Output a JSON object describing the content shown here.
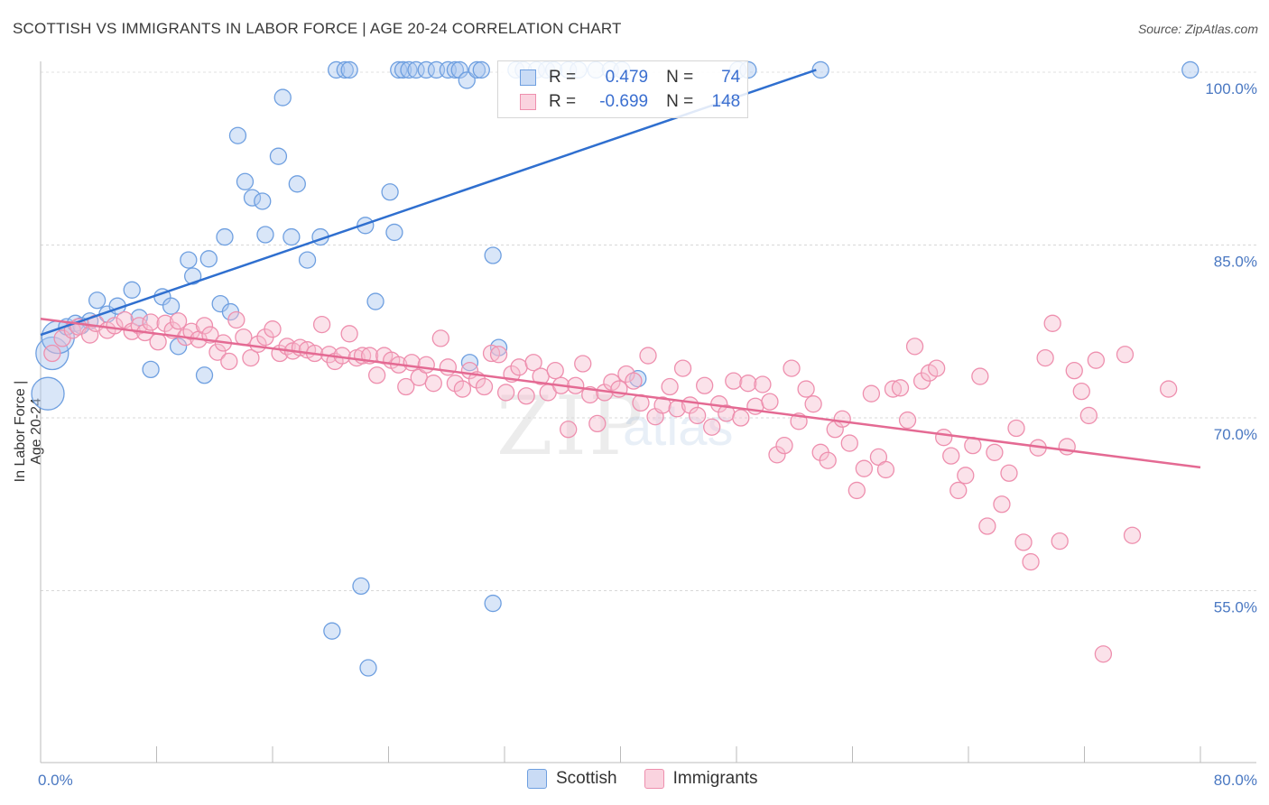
{
  "title": "SCOTTISH VS IMMIGRANTS IN LABOR FORCE | AGE 20-24 CORRELATION CHART",
  "source": "Source: ZipAtlas.com",
  "watermark": {
    "zip": "ZIP",
    "atlas": "atlas"
  },
  "legend": {
    "r_label": "R =",
    "n_label": "N =",
    "scottish": {
      "r": "0.479",
      "n": "74"
    },
    "immigrants": {
      "r": "-0.699",
      "n": "148"
    }
  },
  "bottom_legend": {
    "scottish": "Scottish",
    "immigrants": "Immigrants"
  },
  "colors": {
    "scottish_fill": "#aac7f0",
    "scottish_stroke": "#6e9fe0",
    "scottish_line": "#2f6fcf",
    "immigrants_fill": "#f6bfd0",
    "immigrants_stroke": "#ee8fae",
    "immigrants_line": "#e46a93",
    "tick_text": "#4a78c2"
  },
  "chart_data": {
    "type": "scatter",
    "title": "SCOTTISH VS IMMIGRANTS IN LABOR FORCE | AGE 20-24 CORRELATION CHART",
    "xlabel": "",
    "ylabel": "In Labor Force | Age 20-24",
    "xlim": [
      0,
      80
    ],
    "ylim": [
      38,
      102
    ],
    "x_tick_labels": [
      "0.0%",
      "80.0%"
    ],
    "y_ticks": [
      55,
      70,
      85,
      100
    ],
    "y_tick_labels": [
      "55.0%",
      "70.0%",
      "85.0%",
      "100.0%"
    ],
    "grid": true,
    "legend_position": "top-center",
    "series": [
      {
        "name": "Scottish",
        "r": 0.479,
        "n": 74,
        "trend": [
          [
            0,
            77.2
          ],
          [
            53.5,
            100.2
          ]
        ],
        "points": [
          [
            0.5,
            72.1,
            "lg"
          ],
          [
            0.8,
            75.6,
            "lg"
          ],
          [
            1.2,
            77.0,
            "lg"
          ],
          [
            1.8,
            77.9
          ],
          [
            2.4,
            78.2
          ],
          [
            2.8,
            78.0
          ],
          [
            3.4,
            78.4
          ],
          [
            3.9,
            80.2
          ],
          [
            4.6,
            79.0
          ],
          [
            5.3,
            79.7
          ],
          [
            6.3,
            81.1
          ],
          [
            6.8,
            78.7
          ],
          [
            7.6,
            74.2
          ],
          [
            8.4,
            80.5
          ],
          [
            9.0,
            79.7
          ],
          [
            9.5,
            76.2
          ],
          [
            10.2,
            83.7
          ],
          [
            10.5,
            82.3
          ],
          [
            11.3,
            73.7
          ],
          [
            11.6,
            83.8
          ],
          [
            12.4,
            79.9
          ],
          [
            12.7,
            85.7
          ],
          [
            13.1,
            79.2
          ],
          [
            13.6,
            94.5
          ],
          [
            14.1,
            90.5
          ],
          [
            14.6,
            89.1
          ],
          [
            15.3,
            88.8
          ],
          [
            15.5,
            85.9
          ],
          [
            16.4,
            92.7
          ],
          [
            16.7,
            97.8
          ],
          [
            17.3,
            85.7
          ],
          [
            17.7,
            90.3
          ],
          [
            18.4,
            83.7
          ],
          [
            19.3,
            85.7
          ],
          [
            20.1,
            51.5
          ],
          [
            20.4,
            100.2
          ],
          [
            21.0,
            100.2
          ],
          [
            21.3,
            100.2
          ],
          [
            22.1,
            55.4
          ],
          [
            22.4,
            86.7
          ],
          [
            22.6,
            48.3
          ],
          [
            23.1,
            80.1
          ],
          [
            24.1,
            89.6
          ],
          [
            24.4,
            86.1
          ],
          [
            24.7,
            100.2
          ],
          [
            25.0,
            100.2
          ],
          [
            25.4,
            100.2
          ],
          [
            25.9,
            100.2
          ],
          [
            26.6,
            100.2
          ],
          [
            27.3,
            100.2
          ],
          [
            28.1,
            100.2
          ],
          [
            28.6,
            100.2
          ],
          [
            28.9,
            100.2
          ],
          [
            29.4,
            99.3
          ],
          [
            29.6,
            74.8
          ],
          [
            30.1,
            100.2
          ],
          [
            30.4,
            100.2
          ],
          [
            31.2,
            53.9
          ],
          [
            31.2,
            84.1
          ],
          [
            31.6,
            76.1
          ],
          [
            32.8,
            100.2
          ],
          [
            33.3,
            100.2
          ],
          [
            34.2,
            100.2
          ],
          [
            34.9,
            100.2
          ],
          [
            35.4,
            100.2
          ],
          [
            36.4,
            100.2
          ],
          [
            37.1,
            100.2
          ],
          [
            38.3,
            100.2
          ],
          [
            39.3,
            100.2
          ],
          [
            40.1,
            100.2
          ],
          [
            41.2,
            73.4
          ],
          [
            48.1,
            100.2
          ],
          [
            48.8,
            100.2
          ],
          [
            53.8,
            100.2
          ],
          [
            79.3,
            100.2
          ]
        ]
      },
      {
        "name": "Immigrants",
        "r": -0.699,
        "n": 148,
        "trend": [
          [
            0,
            78.6
          ],
          [
            80,
            65.7
          ]
        ],
        "points": [
          [
            0.8,
            75.6
          ],
          [
            1.5,
            76.9
          ],
          [
            2.2,
            77.6
          ],
          [
            2.6,
            77.9
          ],
          [
            3.4,
            77.2
          ],
          [
            3.8,
            78.2
          ],
          [
            4.6,
            77.6
          ],
          [
            5.1,
            78.0
          ],
          [
            5.8,
            78.5
          ],
          [
            6.3,
            77.5
          ],
          [
            6.8,
            78.0
          ],
          [
            7.2,
            77.4
          ],
          [
            7.6,
            78.3
          ],
          [
            8.1,
            76.6
          ],
          [
            8.6,
            78.2
          ],
          [
            9.1,
            77.6
          ],
          [
            9.5,
            78.4
          ],
          [
            10.0,
            77.0
          ],
          [
            10.4,
            77.5
          ],
          [
            10.9,
            76.8
          ],
          [
            11.3,
            78.0
          ],
          [
            11.7,
            77.2
          ],
          [
            12.2,
            75.7
          ],
          [
            12.6,
            76.5
          ],
          [
            13.0,
            74.9
          ],
          [
            13.5,
            78.5
          ],
          [
            14.0,
            77.0
          ],
          [
            14.5,
            75.2
          ],
          [
            15.0,
            76.4
          ],
          [
            15.5,
            77.0
          ],
          [
            16.0,
            77.7
          ],
          [
            16.5,
            75.6
          ],
          [
            17.0,
            76.2
          ],
          [
            17.4,
            75.8
          ],
          [
            17.9,
            76.1
          ],
          [
            18.4,
            75.9
          ],
          [
            18.9,
            75.6
          ],
          [
            19.4,
            78.1
          ],
          [
            19.9,
            75.5
          ],
          [
            20.3,
            74.9
          ],
          [
            20.8,
            75.4
          ],
          [
            21.3,
            77.3
          ],
          [
            21.8,
            75.2
          ],
          [
            22.2,
            75.4
          ],
          [
            22.7,
            75.4
          ],
          [
            23.2,
            73.7
          ],
          [
            23.7,
            75.4
          ],
          [
            24.2,
            75.0
          ],
          [
            24.7,
            74.6
          ],
          [
            25.2,
            72.7
          ],
          [
            25.6,
            74.8
          ],
          [
            26.1,
            73.5
          ],
          [
            26.6,
            74.6
          ],
          [
            27.1,
            73.0
          ],
          [
            27.6,
            76.9
          ],
          [
            28.1,
            74.4
          ],
          [
            28.6,
            73.0
          ],
          [
            29.1,
            72.5
          ],
          [
            29.6,
            74.1
          ],
          [
            30.1,
            73.3
          ],
          [
            30.6,
            72.7
          ],
          [
            31.1,
            75.6
          ],
          [
            31.6,
            75.5
          ],
          [
            32.1,
            72.2
          ],
          [
            32.5,
            73.8
          ],
          [
            33.0,
            74.4
          ],
          [
            33.5,
            71.9
          ],
          [
            34.0,
            74.8
          ],
          [
            34.5,
            73.6
          ],
          [
            35.0,
            72.2
          ],
          [
            35.5,
            74.1
          ],
          [
            35.9,
            72.8
          ],
          [
            36.4,
            69.0
          ],
          [
            36.9,
            72.8
          ],
          [
            37.4,
            74.7
          ],
          [
            37.9,
            72.0
          ],
          [
            38.4,
            69.5
          ],
          [
            38.9,
            72.2
          ],
          [
            39.4,
            73.1
          ],
          [
            39.9,
            72.5
          ],
          [
            40.4,
            73.8
          ],
          [
            40.9,
            73.2
          ],
          [
            41.4,
            71.3
          ],
          [
            41.9,
            75.4
          ],
          [
            42.4,
            70.1
          ],
          [
            42.9,
            71.1
          ],
          [
            43.4,
            72.7
          ],
          [
            43.9,
            70.8
          ],
          [
            44.3,
            74.3
          ],
          [
            44.8,
            71.1
          ],
          [
            45.3,
            70.2
          ],
          [
            45.8,
            72.8
          ],
          [
            46.3,
            69.2
          ],
          [
            46.8,
            71.2
          ],
          [
            47.3,
            70.4
          ],
          [
            47.8,
            73.2
          ],
          [
            48.3,
            70.0
          ],
          [
            48.8,
            73.0
          ],
          [
            49.3,
            71.0
          ],
          [
            49.8,
            72.9
          ],
          [
            50.3,
            71.4
          ],
          [
            50.8,
            66.8
          ],
          [
            51.3,
            67.6
          ],
          [
            51.8,
            74.3
          ],
          [
            52.3,
            69.7
          ],
          [
            52.8,
            72.5
          ],
          [
            53.3,
            71.2
          ],
          [
            53.8,
            67.0
          ],
          [
            54.3,
            66.3
          ],
          [
            54.8,
            69.0
          ],
          [
            55.3,
            69.9
          ],
          [
            55.8,
            67.8
          ],
          [
            56.3,
            63.7
          ],
          [
            56.8,
            65.6
          ],
          [
            57.3,
            72.1
          ],
          [
            57.8,
            66.6
          ],
          [
            58.3,
            65.5
          ],
          [
            58.8,
            72.5
          ],
          [
            59.3,
            72.6
          ],
          [
            59.8,
            69.8
          ],
          [
            60.3,
            76.2
          ],
          [
            60.8,
            73.2
          ],
          [
            61.3,
            73.9
          ],
          [
            61.8,
            74.3
          ],
          [
            62.3,
            68.3
          ],
          [
            62.8,
            66.7
          ],
          [
            63.3,
            63.7
          ],
          [
            63.8,
            65.0
          ],
          [
            64.3,
            67.6
          ],
          [
            64.8,
            73.6
          ],
          [
            65.3,
            60.6
          ],
          [
            65.8,
            67.0
          ],
          [
            66.3,
            62.5
          ],
          [
            66.8,
            65.2
          ],
          [
            67.3,
            69.1
          ],
          [
            67.8,
            59.2
          ],
          [
            68.3,
            57.5
          ],
          [
            68.8,
            67.4
          ],
          [
            69.3,
            75.2
          ],
          [
            69.8,
            78.2
          ],
          [
            70.3,
            59.3
          ],
          [
            70.8,
            67.5
          ],
          [
            71.3,
            74.1
          ],
          [
            71.8,
            72.3
          ],
          [
            72.3,
            70.2
          ],
          [
            72.8,
            75.0
          ],
          [
            73.3,
            49.5
          ],
          [
            74.8,
            75.5
          ],
          [
            75.3,
            59.8
          ],
          [
            77.8,
            72.5
          ]
        ]
      }
    ]
  }
}
